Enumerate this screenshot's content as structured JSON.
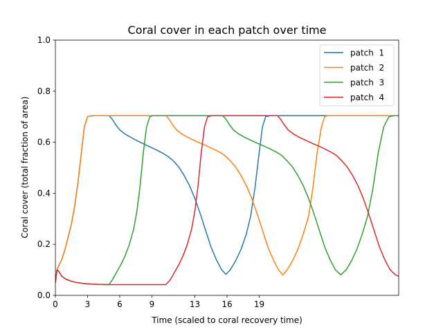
{
  "chart_data": {
    "type": "line",
    "title": "Coral cover in each patch over time",
    "xlabel": "Time (scaled to coral recovery time)",
    "ylabel": "Coral cover (total fraction of area)",
    "xlim": [
      0,
      32
    ],
    "ylim": [
      0,
      1.0
    ],
    "xticks": [
      0,
      3,
      6,
      9,
      13,
      16,
      19
    ],
    "xtick_labels": [
      "0",
      "3",
      "6",
      "9",
      "13",
      "16",
      "19"
    ],
    "yticks": [
      0.0,
      0.2,
      0.4,
      0.6,
      0.8,
      1.0
    ],
    "ytick_labels": [
      "0.0",
      "0.2",
      "0.4",
      "0.6",
      "0.8",
      "1.0"
    ],
    "grid": false,
    "legend_position": "top-right",
    "series": [
      {
        "name": "patch  1",
        "color": "#1f77b4",
        "x": [
          0,
          0.15,
          0.3,
          0.6,
          0.9,
          1.2,
          1.5,
          1.8,
          2.1,
          2.4,
          2.7,
          3.0,
          3.3,
          3.6,
          4.0,
          5.0,
          5.3,
          5.6,
          6.0,
          6.5,
          7.0,
          7.5,
          8.0,
          8.5,
          9.0,
          9.5,
          10.0,
          10.5,
          11.0,
          11.5,
          12.0,
          12.5,
          13.0,
          13.5,
          14.0,
          14.5,
          15.0,
          15.5,
          15.9,
          16.3,
          16.8,
          17.3,
          17.8,
          18.2,
          18.6,
          19.0,
          19.3,
          19.6,
          20.0,
          21.0,
          32.0
        ],
        "y": [
          0.05,
          0.1,
          0.115,
          0.14,
          0.18,
          0.23,
          0.28,
          0.35,
          0.44,
          0.55,
          0.66,
          0.7,
          0.703,
          0.704,
          0.704,
          0.704,
          0.69,
          0.67,
          0.648,
          0.632,
          0.62,
          0.608,
          0.598,
          0.588,
          0.578,
          0.568,
          0.557,
          0.544,
          0.527,
          0.503,
          0.47,
          0.43,
          0.38,
          0.32,
          0.255,
          0.19,
          0.14,
          0.1,
          0.082,
          0.1,
          0.135,
          0.18,
          0.24,
          0.31,
          0.42,
          0.56,
          0.66,
          0.7,
          0.704,
          0.704,
          0.704
        ]
      },
      {
        "name": "patch  2",
        "color": "#ff7f0e",
        "x": [
          0,
          0.15,
          0.3,
          0.6,
          0.9,
          1.2,
          1.5,
          1.8,
          2.1,
          2.4,
          2.7,
          3.0,
          3.3,
          3.6,
          4.0,
          10.3,
          10.6,
          10.9,
          11.3,
          11.8,
          12.3,
          12.8,
          13.3,
          13.8,
          14.3,
          14.8,
          15.3,
          15.8,
          16.3,
          16.8,
          17.3,
          17.8,
          18.3,
          18.8,
          19.3,
          19.8,
          20.3,
          20.8,
          21.2,
          21.6,
          22.1,
          22.6,
          23.1,
          23.6,
          24.0,
          24.4,
          24.8,
          25.1,
          25.4,
          25.8,
          32.0
        ],
        "y": [
          0.05,
          0.1,
          0.115,
          0.14,
          0.18,
          0.23,
          0.28,
          0.35,
          0.44,
          0.55,
          0.66,
          0.7,
          0.703,
          0.704,
          0.704,
          0.704,
          0.69,
          0.67,
          0.648,
          0.632,
          0.62,
          0.61,
          0.6,
          0.591,
          0.582,
          0.572,
          0.561,
          0.548,
          0.527,
          0.503,
          0.47,
          0.43,
          0.38,
          0.32,
          0.255,
          0.19,
          0.14,
          0.1,
          0.08,
          0.1,
          0.135,
          0.18,
          0.24,
          0.31,
          0.42,
          0.56,
          0.66,
          0.7,
          0.704,
          0.704,
          0.704
        ]
      },
      {
        "name": "patch  3",
        "color": "#2ca02c",
        "x": [
          0,
          0.15,
          0.3,
          0.6,
          1.0,
          1.5,
          2.0,
          2.5,
          3.0,
          3.5,
          4.0,
          4.5,
          5.0,
          5.3,
          5.7,
          6.1,
          6.5,
          6.9,
          7.3,
          7.6,
          7.9,
          8.2,
          8.5,
          8.8,
          9.1,
          9.5,
          10.0,
          15.6,
          15.9,
          16.2,
          16.6,
          17.1,
          17.6,
          18.1,
          18.6,
          19.1,
          19.6,
          20.1,
          20.6,
          21.1,
          21.6,
          22.1,
          22.6,
          23.1,
          23.6,
          24.1,
          24.6,
          25.1,
          25.6,
          26.1,
          26.6,
          27.1,
          27.6,
          28.1,
          28.6,
          29.1,
          29.6,
          30.1,
          30.6,
          31.1,
          31.6,
          32.0
        ],
        "y": [
          0.05,
          0.1,
          0.095,
          0.075,
          0.063,
          0.055,
          0.05,
          0.047,
          0.045,
          0.044,
          0.043,
          0.042,
          0.042,
          0.06,
          0.09,
          0.12,
          0.155,
          0.2,
          0.26,
          0.33,
          0.43,
          0.56,
          0.66,
          0.7,
          0.704,
          0.704,
          0.704,
          0.704,
          0.69,
          0.67,
          0.648,
          0.632,
          0.62,
          0.61,
          0.6,
          0.591,
          0.582,
          0.572,
          0.561,
          0.548,
          0.527,
          0.503,
          0.47,
          0.43,
          0.38,
          0.32,
          0.255,
          0.19,
          0.14,
          0.1,
          0.08,
          0.1,
          0.135,
          0.18,
          0.24,
          0.31,
          0.42,
          0.56,
          0.66,
          0.7,
          0.704,
          0.704
        ],
        "note_visible_range": "truncated at 32"
      },
      {
        "name": "patch  4",
        "color": "#d62728",
        "x": [
          0,
          0.15,
          0.3,
          0.6,
          1.0,
          1.5,
          2.0,
          2.5,
          3.0,
          3.5,
          4.0,
          5.0,
          6.0,
          7.0,
          8.0,
          9.0,
          10.0,
          10.3,
          10.7,
          11.1,
          11.5,
          11.9,
          12.3,
          12.7,
          13.0,
          13.3,
          13.6,
          13.9,
          14.2,
          14.6,
          15.0,
          20.7,
          21.0,
          21.3,
          21.7,
          22.2,
          22.7,
          23.2,
          23.7,
          24.2,
          24.7,
          25.2,
          25.7,
          26.2,
          26.7,
          27.2,
          27.7,
          28.2,
          28.7,
          29.2,
          29.7,
          30.2,
          30.7,
          31.2,
          31.7,
          32.0
        ],
        "y": [
          0.05,
          0.1,
          0.095,
          0.075,
          0.063,
          0.055,
          0.05,
          0.047,
          0.045,
          0.044,
          0.043,
          0.042,
          0.042,
          0.042,
          0.042,
          0.042,
          0.042,
          0.042,
          0.06,
          0.09,
          0.12,
          0.155,
          0.2,
          0.26,
          0.33,
          0.43,
          0.56,
          0.66,
          0.7,
          0.704,
          0.704,
          0.704,
          0.69,
          0.67,
          0.648,
          0.632,
          0.62,
          0.61,
          0.6,
          0.591,
          0.582,
          0.572,
          0.561,
          0.548,
          0.527,
          0.503,
          0.47,
          0.43,
          0.38,
          0.32,
          0.255,
          0.19,
          0.14,
          0.1,
          0.08,
          0.075
        ]
      }
    ]
  }
}
